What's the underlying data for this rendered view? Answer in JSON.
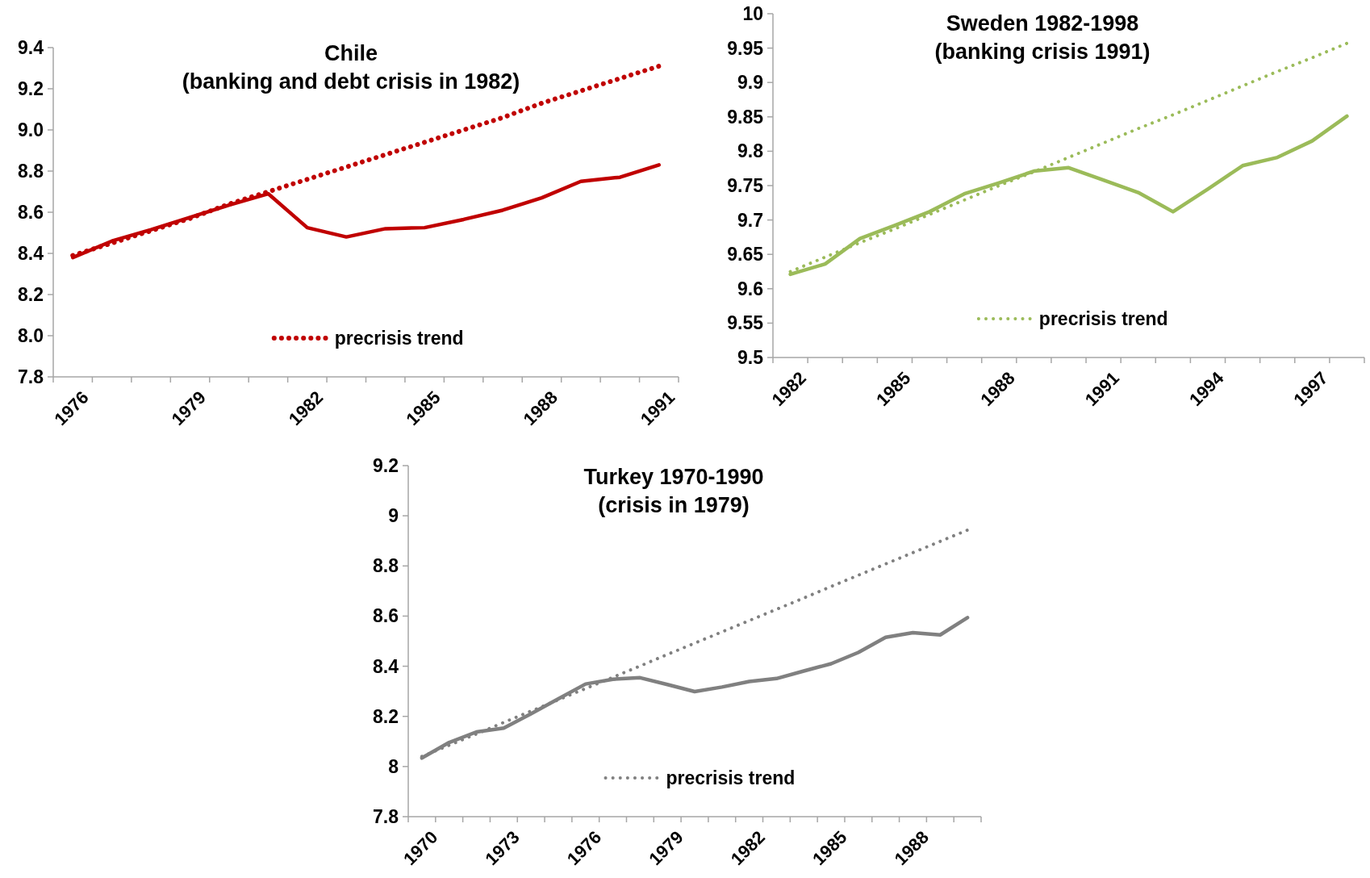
{
  "chart_data": [
    {
      "type": "line",
      "title": "Chile",
      "subtitle": "(banking and debt crisis in 1982)",
      "categories": [
        "1976",
        null,
        null,
        "1979",
        null,
        null,
        "1982",
        null,
        null,
        "1985",
        null,
        null,
        "1988",
        null,
        null,
        "1991"
      ],
      "ylim": [
        7.8,
        9.4
      ],
      "yticks": [
        7.8,
        {
          "value": 8,
          "label": "8.0"
        },
        8.2,
        8.4,
        8.6,
        8.8,
        {
          "value": 9,
          "label": "9.0"
        },
        9.2,
        9.4
      ],
      "grid": false,
      "legend": "bottom",
      "marker": "none",
      "series": [
        {
          "color": "#c00000",
          "line_style": "solid",
          "values": [
            8.38,
            8.46,
            8.515,
            8.575,
            8.635,
            8.69,
            8.525,
            8.48,
            8.52,
            8.525,
            8.565,
            8.61,
            8.67,
            8.75,
            8.77,
            8.83
          ]
        },
        {
          "name": "precrisis trend",
          "color": "#c00000",
          "line_style": "dotted",
          "values": [
            8.39,
            8.45,
            8.51,
            8.57,
            8.64,
            8.7,
            8.76,
            8.82,
            8.88,
            8.94,
            9.0,
            9.06,
            9.13,
            9.19,
            9.25,
            9.31
          ]
        }
      ]
    },
    {
      "type": "line",
      "title": "Sweden 1982-1998",
      "subtitle": "(banking crisis 1991)",
      "categories": [
        "1982",
        null,
        null,
        "1985",
        null,
        null,
        "1988",
        null,
        null,
        "1991",
        null,
        null,
        "1994",
        null,
        null,
        "1997",
        null
      ],
      "ylim": [
        9.5,
        10
      ],
      "yticks": [
        9.5,
        9.55,
        9.6,
        9.65,
        9.7,
        9.75,
        9.8,
        9.85,
        9.9,
        9.95,
        10
      ],
      "grid": false,
      "legend": "bottom",
      "marker": "none",
      "series": [
        {
          "color": "#9bbb59",
          "line_style": "solid",
          "values": [
            9.621,
            9.636,
            9.673,
            9.692,
            9.712,
            9.738,
            9.754,
            9.771,
            9.776,
            9.758,
            9.74,
            9.712,
            9.745,
            9.779,
            9.791,
            9.815,
            9.851
          ]
        },
        {
          "name": "precrisis trend",
          "color": "#9bbb59",
          "line_style": "dotted",
          "values": [
            9.625,
            9.646,
            9.667,
            9.687,
            9.708,
            9.729,
            9.75,
            9.77,
            9.791,
            9.812,
            9.833,
            9.853,
            9.874,
            9.895,
            9.916,
            9.936,
            9.957
          ]
        }
      ]
    },
    {
      "type": "line",
      "title": "Turkey 1970-1990",
      "subtitle": "(crisis in 1979)",
      "categories": [
        "1970",
        null,
        null,
        "1973",
        null,
        null,
        "1976",
        null,
        null,
        "1979",
        null,
        null,
        "1982",
        null,
        null,
        "1985",
        null,
        null,
        "1988",
        null,
        null
      ],
      "ylim": [
        7.8,
        9.2
      ],
      "yticks": [
        7.8,
        8,
        8.2,
        8.4,
        8.6,
        8.8,
        9,
        9.2
      ],
      "grid": false,
      "legend": "bottom",
      "marker": "none",
      "series": [
        {
          "color": "#808080",
          "line_style": "solid",
          "values": [
            8.034,
            8.096,
            8.138,
            8.153,
            8.21,
            8.27,
            8.329,
            8.348,
            8.354,
            8.327,
            8.299,
            8.317,
            8.339,
            8.351,
            8.381,
            8.41,
            8.455,
            8.515,
            8.534,
            8.525,
            8.594
          ]
        },
        {
          "name": "precrisis trend",
          "color": "#808080",
          "line_style": "dotted",
          "values": [
            8.04,
            8.085,
            8.13,
            8.176,
            8.221,
            8.266,
            8.311,
            8.356,
            8.401,
            8.447,
            8.492,
            8.537,
            8.582,
            8.627,
            8.672,
            8.718,
            8.763,
            8.808,
            8.853,
            8.898,
            8.943
          ]
        }
      ]
    }
  ]
}
